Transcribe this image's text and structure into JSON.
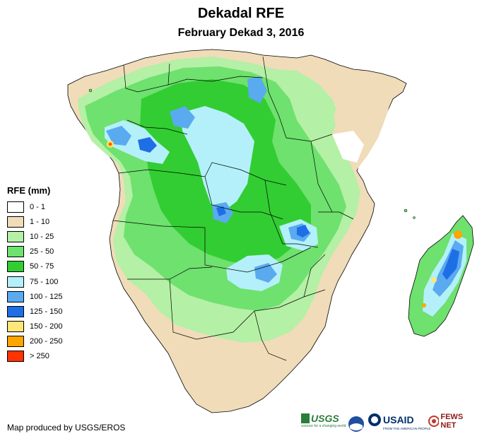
{
  "title": "Dekadal RFE",
  "subtitle": "February Dekad 3, 2016",
  "legend": {
    "title": "RFE (mm)",
    "items": [
      {
        "label": "0 - 1",
        "color": "#ffffff"
      },
      {
        "label": "1 - 10",
        "color": "#f0dcb9"
      },
      {
        "label": "10 - 25",
        "color": "#b4f0a5"
      },
      {
        "label": "25 - 50",
        "color": "#6ee16e"
      },
      {
        "label": "50 - 75",
        "color": "#32cd32"
      },
      {
        "label": "75 - 100",
        "color": "#b4f0fa"
      },
      {
        "label": "100 - 125",
        "color": "#5aaaf0"
      },
      {
        "label": "125 - 150",
        "color": "#1e6ee6"
      },
      {
        "label": "150 - 200",
        "color": "#ffe678"
      },
      {
        "label": "200 - 250",
        "color": "#ffa500"
      },
      {
        "label": "> 250",
        "color": "#ff3200"
      }
    ]
  },
  "credit": "Map produced by USGS/EROS",
  "logos": {
    "usgs": "USGS",
    "usgs_tagline": "science for a changing world",
    "usaid": "USAID",
    "usaid_tagline": "FROM THE AMERICAN PEOPLE",
    "fewsnet": "FEWS NET"
  }
}
